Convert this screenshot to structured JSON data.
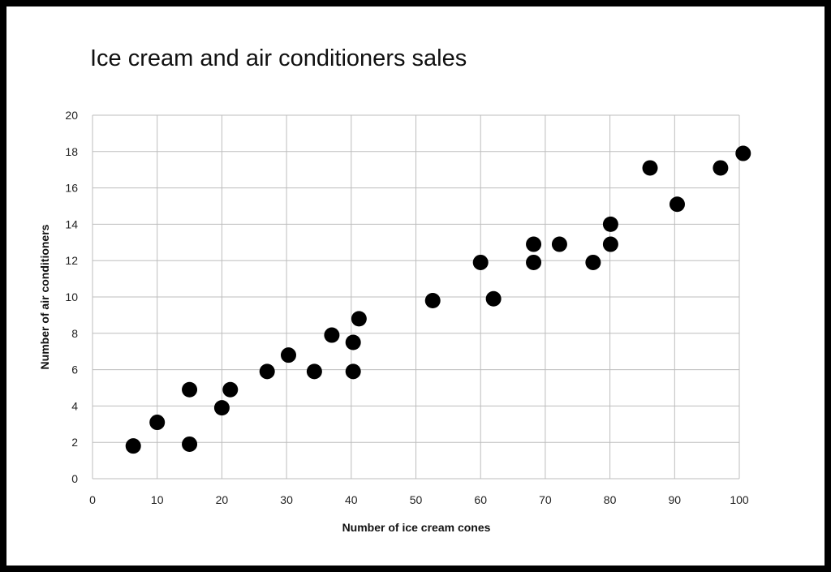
{
  "chart_data": {
    "type": "scatter",
    "title": "Ice cream and air conditioners sales",
    "xlabel": "Number of ice cream cones",
    "ylabel": "Number of air conditioners",
    "xlim": [
      0,
      100
    ],
    "ylim": [
      0,
      20
    ],
    "xticks": [
      0,
      10,
      20,
      30,
      40,
      50,
      60,
      70,
      80,
      90,
      100
    ],
    "yticks": [
      0,
      2,
      4,
      6,
      8,
      10,
      12,
      14,
      16,
      18,
      20
    ],
    "grid": true,
    "legend": "none",
    "series": [
      {
        "points": [
          {
            "x": 6.3,
            "y": 1.8
          },
          {
            "x": 10,
            "y": 3.1
          },
          {
            "x": 15,
            "y": 4.9
          },
          {
            "x": 15,
            "y": 1.9
          },
          {
            "x": 20,
            "y": 3.9
          },
          {
            "x": 21.3,
            "y": 4.9
          },
          {
            "x": 27,
            "y": 5.9
          },
          {
            "x": 30.3,
            "y": 6.8
          },
          {
            "x": 34.3,
            "y": 5.9
          },
          {
            "x": 37,
            "y": 7.9
          },
          {
            "x": 40.3,
            "y": 7.5
          },
          {
            "x": 40.3,
            "y": 5.9
          },
          {
            "x": 41.2,
            "y": 8.8
          },
          {
            "x": 52.6,
            "y": 9.8
          },
          {
            "x": 60,
            "y": 11.9
          },
          {
            "x": 62,
            "y": 9.9
          },
          {
            "x": 68.2,
            "y": 12.9
          },
          {
            "x": 68.2,
            "y": 11.9
          },
          {
            "x": 72.2,
            "y": 12.9
          },
          {
            "x": 77.4,
            "y": 11.9
          },
          {
            "x": 80.1,
            "y": 14.0
          },
          {
            "x": 80.1,
            "y": 12.9
          },
          {
            "x": 86.2,
            "y": 17.1
          },
          {
            "x": 90.4,
            "y": 15.1
          },
          {
            "x": 97.1,
            "y": 17.1
          },
          {
            "x": 100.6,
            "y": 17.9
          }
        ]
      }
    ]
  },
  "colors": {
    "background": "#ffffff",
    "border": "#000000",
    "point": "#000000",
    "grid": "#bdbdbd"
  }
}
